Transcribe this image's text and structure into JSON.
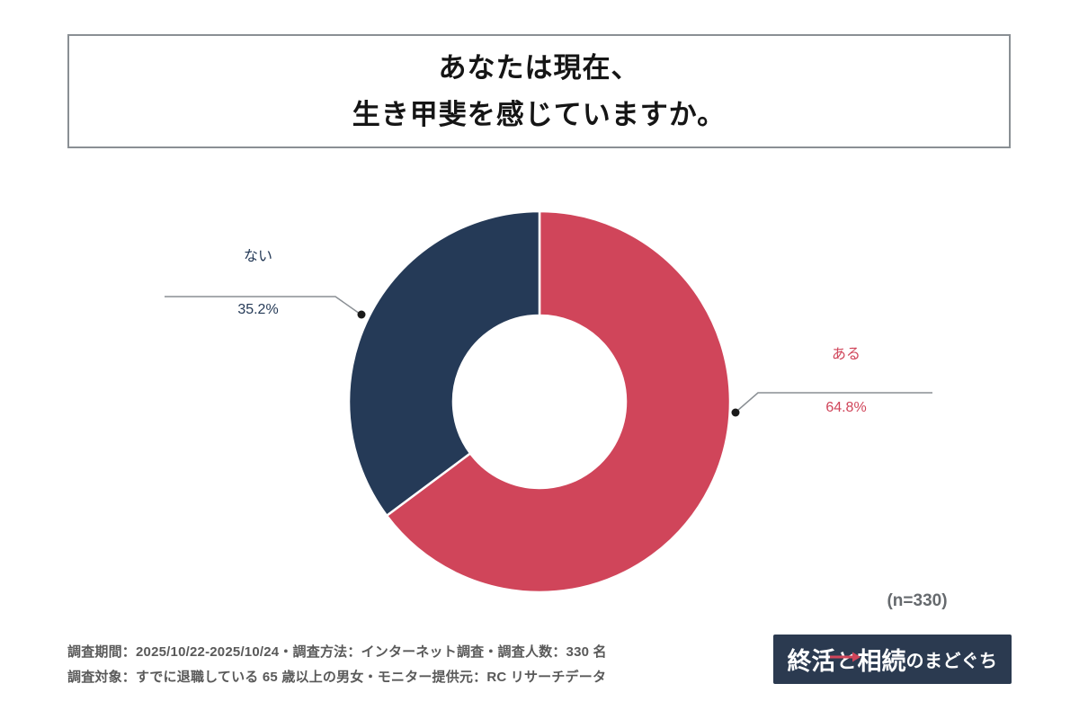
{
  "title": {
    "line1": "あなたは現在、",
    "line2": "生き甲斐を感じていますか。"
  },
  "chart_data": {
    "type": "pie",
    "donut": true,
    "title": "あなたは現在、生き甲斐を感じていますか。",
    "start_angle_deg": 0,
    "direction": "clockwise",
    "segments": [
      {
        "key": "aru",
        "label": "ある",
        "value": 64.8,
        "display": "64.8%",
        "color": "#d0455a"
      },
      {
        "key": "nai",
        "label": "ない",
        "value": 35.2,
        "display": "35.2%",
        "color": "#253a57"
      }
    ],
    "n": 330,
    "sample_label": "(n=330)",
    "legend_position": "callouts"
  },
  "footer": {
    "line1": "調査期間：2025/10/22-2025/10/24・調査方法：インターネット調査・調査人数：330 名",
    "line2": "調査対象：すでに退職している 65 歳以上の男女・モニター提供元：RC リサーチデータ"
  },
  "logo": {
    "part1": "終活",
    "connector": "と",
    "part2": "相続",
    "suffix": "のまどぐち",
    "background": "#2b3a50",
    "arrow_color": "#d0455a"
  },
  "colors": {
    "accent_red": "#d0455a",
    "accent_navy": "#253a57",
    "leader_line": "#8a8f94",
    "leader_dot": "#1a1a1a",
    "title_border": "#8a8f94",
    "footer_text": "#595959",
    "n_text": "#666a6e"
  }
}
